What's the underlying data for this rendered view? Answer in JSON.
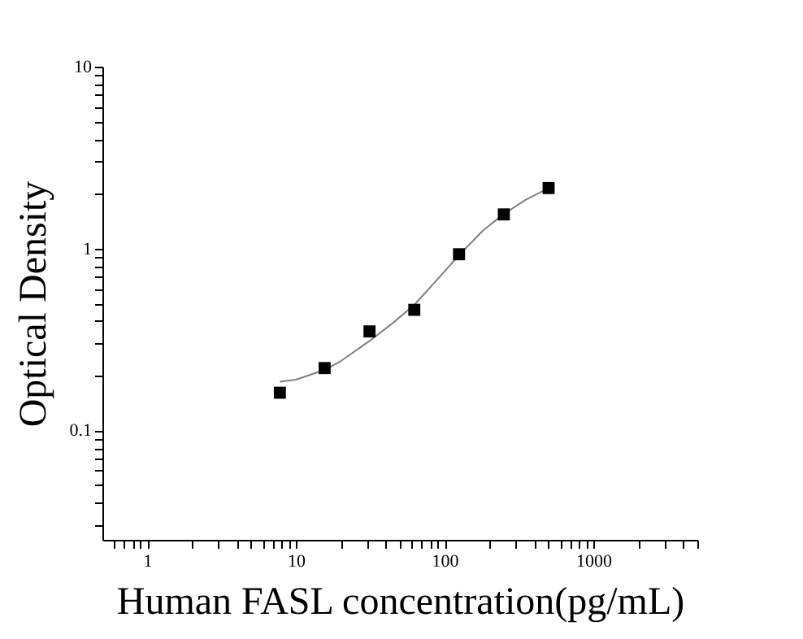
{
  "chart_data": {
    "type": "scatter",
    "xlabel": "Human FASL concentration(pg/mL)",
    "ylabel": "Optical Density",
    "log": "xy",
    "grid": false,
    "marker": "square",
    "xlim": [
      0.5,
      5000
    ],
    "ylim": [
      0.025,
      10
    ],
    "xticks": [
      {
        "value": 0.6,
        "label": null
      },
      {
        "value": 0.7,
        "label": null
      },
      {
        "value": 0.8,
        "label": null
      },
      {
        "value": 0.9,
        "label": null
      },
      1,
      {
        "value": 2,
        "label": null
      },
      {
        "value": 3,
        "label": null
      },
      {
        "value": 4,
        "label": null
      },
      {
        "value": 5,
        "label": null
      },
      {
        "value": 6,
        "label": null
      },
      {
        "value": 7,
        "label": null
      },
      {
        "value": 8,
        "label": null
      },
      {
        "value": 9,
        "label": null
      },
      10,
      {
        "value": 20,
        "label": null
      },
      {
        "value": 30,
        "label": null
      },
      {
        "value": 40,
        "label": null
      },
      {
        "value": 50,
        "label": null
      },
      {
        "value": 60,
        "label": null
      },
      {
        "value": 70,
        "label": null
      },
      {
        "value": 80,
        "label": null
      },
      {
        "value": 90,
        "label": null
      },
      100,
      {
        "value": 200,
        "label": null
      },
      {
        "value": 300,
        "label": null
      },
      {
        "value": 400,
        "label": null
      },
      {
        "value": 500,
        "label": null
      },
      {
        "value": 600,
        "label": null
      },
      {
        "value": 700,
        "label": null
      },
      {
        "value": 800,
        "label": null
      },
      {
        "value": 900,
        "label": null
      },
      1000,
      {
        "value": 2000,
        "label": null
      },
      {
        "value": 3000,
        "label": null
      },
      {
        "value": 4000,
        "label": null
      },
      {
        "value": 5000,
        "label": null
      }
    ],
    "yticks": [
      {
        "value": 0.03,
        "label": null
      },
      {
        "value": 0.04,
        "label": null
      },
      {
        "value": 0.05,
        "label": null
      },
      {
        "value": 0.06,
        "label": null
      },
      {
        "value": 0.07,
        "label": null
      },
      {
        "value": 0.08,
        "label": null
      },
      {
        "value": 0.09,
        "label": null
      },
      0.1,
      {
        "value": 0.2,
        "label": null
      },
      {
        "value": 0.3,
        "label": null
      },
      {
        "value": 0.4,
        "label": null
      },
      {
        "value": 0.5,
        "label": null
      },
      {
        "value": 0.6,
        "label": null
      },
      {
        "value": 0.7,
        "label": null
      },
      {
        "value": 0.8,
        "label": null
      },
      {
        "value": 0.9,
        "label": null
      },
      1,
      {
        "value": 2,
        "label": null
      },
      {
        "value": 3,
        "label": null
      },
      {
        "value": 4,
        "label": null
      },
      {
        "value": 5,
        "label": null
      },
      {
        "value": 6,
        "label": null
      },
      {
        "value": 7,
        "label": null
      },
      {
        "value": 8,
        "label": null
      },
      {
        "value": 9,
        "label": null
      },
      10
    ],
    "series": [
      {
        "type": "line",
        "color": "#808080",
        "marker": "none",
        "x": [
          7.8,
          10,
          15.6,
          20,
          31.25,
          45,
          62.5,
          90,
          125,
          180,
          250,
          350,
          500
        ],
        "values": [
          0.185,
          0.19,
          0.215,
          0.24,
          0.31,
          0.39,
          0.49,
          0.68,
          0.92,
          1.25,
          1.55,
          1.85,
          2.15
        ]
      },
      {
        "color": "#000000",
        "x": [
          7.8,
          15.6,
          31.25,
          62.5,
          125,
          250,
          500
        ],
        "values": [
          0.161,
          0.22,
          0.35,
          0.46,
          0.93,
          1.54,
          2.15
        ]
      }
    ]
  }
}
